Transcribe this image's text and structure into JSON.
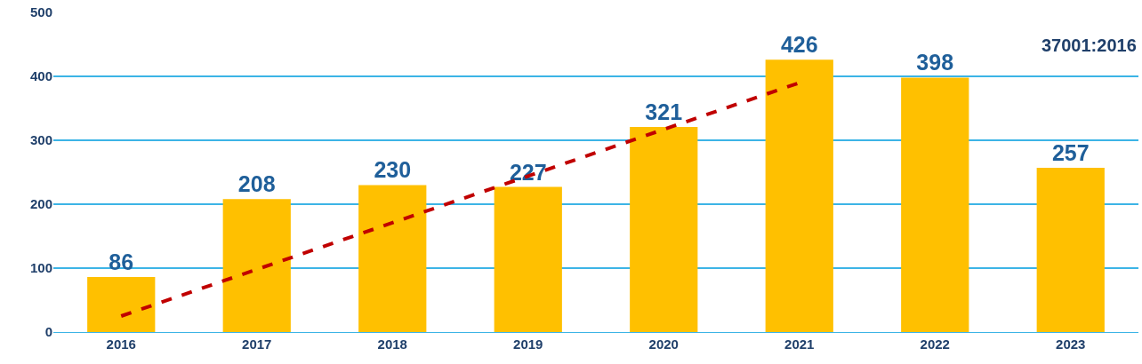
{
  "chart_data": {
    "type": "bar",
    "categories": [
      "2016",
      "2017",
      "2018",
      "2019",
      "2020",
      "2021",
      "2022",
      "2023"
    ],
    "series": [
      {
        "color": "#ffc000",
        "values": [
          86,
          208,
          230,
          227,
          321,
          426,
          398,
          257
        ],
        "value_labels": [
          "86",
          "208",
          "230",
          "227",
          "321",
          "426",
          "398",
          "257"
        ]
      },
      {
        "type": "line",
        "color": "#c00000",
        "values": [
          25,
          null,
          null,
          null,
          null,
          390,
          null,
          null
        ],
        "line_style": "dashed"
      }
    ],
    "ylim": [
      0,
      500
    ],
    "yticks": [
      0,
      100,
      200,
      300,
      400,
      500
    ],
    "grid": "y",
    "legend": false,
    "annotations": [
      "37001:2016"
    ]
  }
}
